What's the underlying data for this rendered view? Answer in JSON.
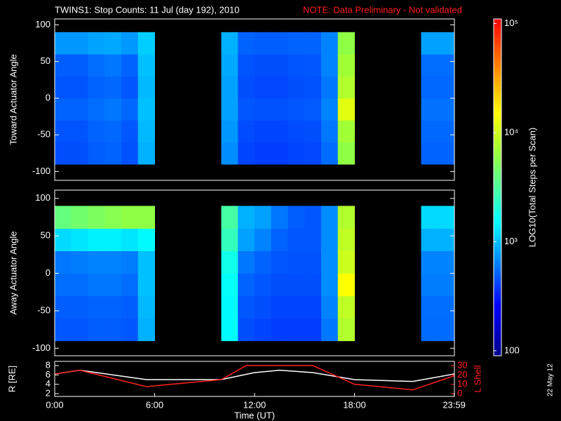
{
  "title": "TWINS1: Stop Counts: 11 Jul (day 192), 2010",
  "note": "NOTE: Data Preliminary - Not validated",
  "date_stamp": "22 May 12",
  "colorbar": {
    "label": "LOG10(Total Steps per Scan)",
    "lim": [
      90,
      110000
    ],
    "log": true,
    "ticks": [
      100,
      {
        "value": 1000,
        "label": "10³"
      },
      {
        "value": 10000,
        "label": "10⁴"
      },
      {
        "value": 100000,
        "label": "10⁵"
      }
    ]
  },
  "chart_data": [
    {
      "type": "heatmap",
      "y_label": "Toward Actuator Angle",
      "xbins": [
        0,
        1,
        2,
        3,
        4,
        5,
        6,
        7,
        8,
        9,
        10,
        11,
        12,
        13,
        14,
        15,
        16,
        17,
        18,
        19,
        20,
        21,
        22,
        23,
        24
      ],
      "ybins": [
        -90,
        -60,
        -30,
        0,
        30,
        60,
        90
      ],
      "ylim": [
        -112,
        108
      ],
      "yticks": [
        -100,
        -50,
        0,
        50,
        100
      ],
      "values": [
        [
          450,
          470,
          520,
          470,
          500,
          750
        ],
        [
          450,
          470,
          520,
          470,
          500,
          750
        ],
        [
          500,
          520,
          560,
          520,
          560,
          820
        ],
        [
          520,
          540,
          600,
          540,
          600,
          850
        ],
        [
          460,
          480,
          540,
          480,
          520,
          760
        ],
        [
          900,
          950,
          1000,
          950,
          1000,
          1100
        ],
        null,
        null,
        null,
        null,
        [
          700,
          750,
          800,
          800,
          850,
          900
        ],
        [
          420,
          440,
          480,
          450,
          470,
          520
        ],
        [
          400,
          420,
          460,
          430,
          450,
          500
        ],
        [
          400,
          420,
          460,
          430,
          450,
          500
        ],
        [
          420,
          440,
          480,
          450,
          470,
          520
        ],
        [
          430,
          450,
          490,
          460,
          480,
          520
        ],
        [
          550,
          600,
          650,
          600,
          650,
          650
        ],
        [
          6000,
          7000,
          12000,
          8000,
          7000,
          6000
        ],
        null,
        null,
        null,
        null,
        [
          520,
          540,
          580,
          540,
          560,
          800
        ],
        [
          520,
          540,
          580,
          540,
          560,
          800
        ]
      ]
    },
    {
      "type": "heatmap",
      "y_label": "Away Actuator Angle",
      "xbins": [
        0,
        1,
        2,
        3,
        4,
        5,
        6,
        7,
        8,
        9,
        10,
        11,
        12,
        13,
        14,
        15,
        16,
        17,
        18,
        19,
        20,
        21,
        22,
        23,
        24
      ],
      "ybins": [
        -90,
        -60,
        -30,
        0,
        30,
        60,
        90
      ],
      "ylim": [
        -110,
        111
      ],
      "yticks": [
        -100,
        -50,
        0,
        50,
        100
      ],
      "values": [
        [
          480,
          500,
          560,
          600,
          1200,
          4000
        ],
        [
          480,
          500,
          560,
          620,
          1300,
          4500
        ],
        [
          500,
          520,
          600,
          650,
          1400,
          5000
        ],
        [
          500,
          520,
          600,
          650,
          1400,
          5500
        ],
        [
          480,
          500,
          560,
          620,
          1300,
          6000
        ],
        [
          900,
          950,
          1000,
          1000,
          1500,
          6000
        ],
        null,
        null,
        null,
        null,
        [
          1500,
          1500,
          1600,
          1800,
          2500,
          3000
        ],
        [
          450,
          480,
          520,
          600,
          800,
          900
        ],
        [
          420,
          450,
          480,
          520,
          650,
          800
        ],
        [
          400,
          420,
          450,
          480,
          520,
          600
        ],
        [
          400,
          420,
          450,
          460,
          480,
          500
        ],
        [
          400,
          420,
          450,
          460,
          480,
          480
        ],
        [
          600,
          650,
          700,
          700,
          700,
          700
        ],
        [
          8000,
          9000,
          15000,
          10000,
          9000,
          8000
        ],
        null,
        null,
        null,
        null,
        [
          550,
          560,
          620,
          650,
          900,
          1200
        ],
        [
          550,
          560,
          620,
          650,
          900,
          1200
        ]
      ]
    },
    {
      "type": "line",
      "x_label": "Time (UT)",
      "y_label": "R [RE]",
      "y2_label": "L Shell",
      "xlim": [
        0,
        24
      ],
      "xticks": [
        {
          "value": 0,
          "label": "0:00"
        },
        {
          "value": 6,
          "label": "6:00"
        },
        {
          "value": 12,
          "label": "12:00"
        },
        {
          "value": 18,
          "label": "18:00"
        },
        {
          "value": 23.983,
          "label": "23:59"
        }
      ],
      "ylim": [
        1.4,
        8.9
      ],
      "yticks": [
        2,
        4,
        6,
        8
      ],
      "y2lim": [
        -3,
        34.5
      ],
      "y2ticks": [
        0,
        10,
        20,
        30
      ],
      "series": [
        {
          "color": "#ffffff",
          "x": [
            0,
            1.5,
            5.5,
            10,
            12,
            13.5,
            15.5,
            18,
            21.5,
            23.98
          ],
          "values": [
            6.2,
            7,
            5,
            5,
            6.5,
            7,
            6.5,
            5,
            4.6,
            6.2
          ]
        },
        {
          "color": "#ff2020",
          "axis": "y2",
          "x": [
            0,
            1.5,
            5.5,
            10,
            11.5,
            15.5,
            18,
            21.5,
            23.98
          ],
          "values": [
            21,
            25,
            7.5,
            15,
            30,
            30,
            10,
            4,
            19
          ]
        }
      ]
    }
  ]
}
